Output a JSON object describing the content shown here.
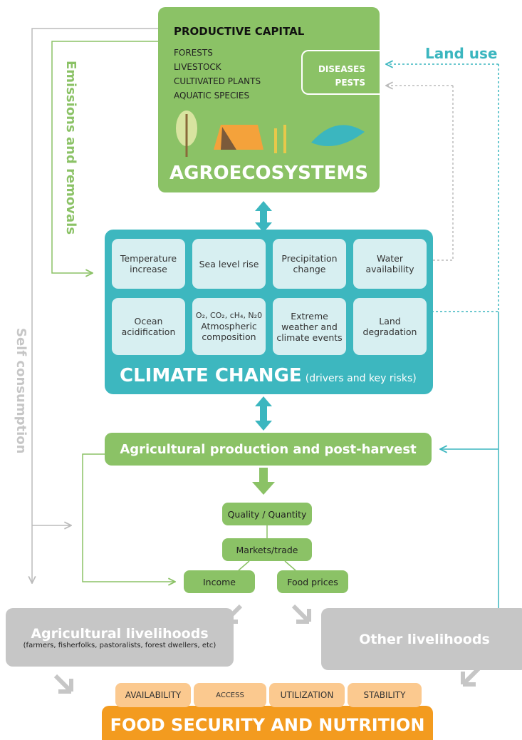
{
  "agroecosystems": {
    "heading": "PRODUCTIVE CAPITAL",
    "items": [
      "FORESTS",
      "LIVESTOCK",
      "CULTIVATED PLANTS",
      "AQUATIC SPECIES"
    ],
    "threats": [
      "DISEASES",
      "PESTS"
    ],
    "title": "AGROECOSYSTEMS"
  },
  "side_labels": {
    "emissions": "Emissions and removals",
    "land_use": "Land use",
    "self_consumption": "Self consumption"
  },
  "climate_change": {
    "drivers": [
      {
        "label": "Temperature increase"
      },
      {
        "label": "Sea level rise"
      },
      {
        "label": "Precipitation change"
      },
      {
        "label": "Water availability"
      },
      {
        "label": "Ocean acidification"
      },
      {
        "formula": "O₂, CO₂, cH₄, N₂0",
        "label": "Atmospheric composition"
      },
      {
        "label": "Extreme weather and climate events"
      },
      {
        "label": "Land degradation"
      }
    ],
    "title": "CLIMATE CHANGE",
    "subtitle": "(drivers and key risks)"
  },
  "production": {
    "title": "Agricultural production and post-harvest",
    "steps": {
      "quality": "Quality / Quantity",
      "markets": "Markets/trade",
      "income": "Income",
      "prices": "Food prices"
    }
  },
  "livelihoods": {
    "agricultural": {
      "title": "Agricultural livelihoods",
      "note": "(farmers, fisherfolks, pastoralists, forest dwellers, etc)"
    },
    "other": "Other livelihoods"
  },
  "food_security": {
    "pillars": [
      "AVAILABILITY",
      "ACCESS",
      "UTILIZATION",
      "STABILITY"
    ],
    "title": "FOOD SECURITY AND NUTRITION"
  }
}
